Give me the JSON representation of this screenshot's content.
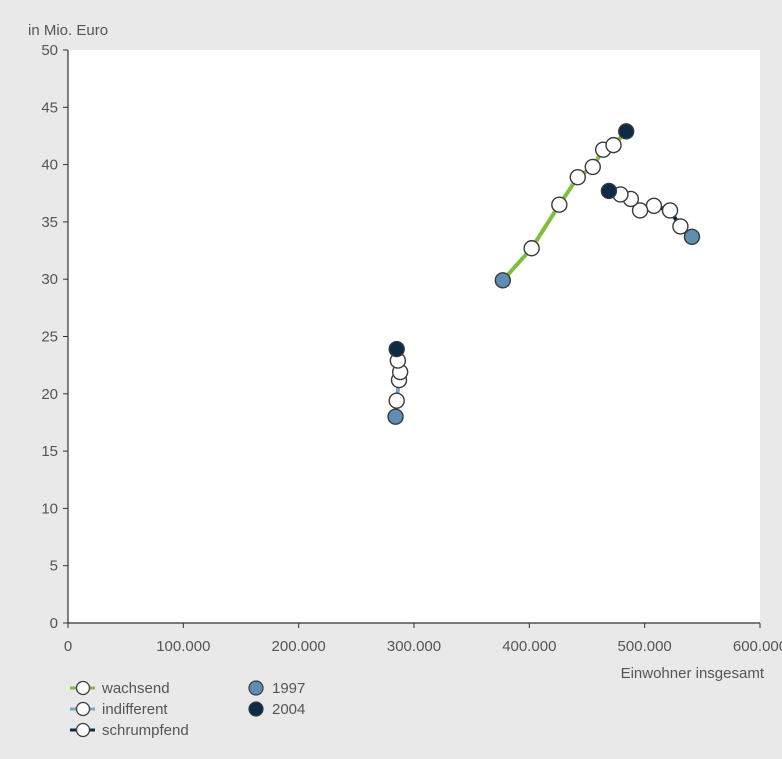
{
  "chart_data": {
    "type": "line",
    "ylabel": "in Mio. Euro",
    "xlabel": "Einwohner insgesamt",
    "xlim": [
      0,
      600000
    ],
    "ylim": [
      0,
      50
    ],
    "x_ticks": [
      0,
      100000,
      200000,
      300000,
      400000,
      500000,
      600000
    ],
    "x_tick_labels": [
      "0",
      "100.000",
      "200.000",
      "300.000",
      "400.000",
      "500.000",
      "600.000"
    ],
    "y_ticks": [
      0,
      5,
      10,
      15,
      20,
      25,
      30,
      35,
      40,
      45,
      50
    ],
    "y_tick_labels": [
      "0",
      "5",
      "10",
      "15",
      "20",
      "25",
      "30",
      "35",
      "40",
      "45",
      "50"
    ],
    "grid": false,
    "legend_position": "bottom-left",
    "series": [
      {
        "name": "wachsend",
        "line_color": "#7dbf3c",
        "points": [
          {
            "x": 377000,
            "y": 29.9,
            "year": "1997"
          },
          {
            "x": 402000,
            "y": 32.7
          },
          {
            "x": 426000,
            "y": 36.5
          },
          {
            "x": 442000,
            "y": 38.9
          },
          {
            "x": 455000,
            "y": 39.8
          },
          {
            "x": 464000,
            "y": 41.3
          },
          {
            "x": 473000,
            "y": 41.7
          },
          {
            "x": 484000,
            "y": 42.9,
            "year": "2004"
          }
        ]
      },
      {
        "name": "indifferent",
        "line_color": "#7ba7c7",
        "points": [
          {
            "x": 284000,
            "y": 18.0,
            "year": "1997"
          },
          {
            "x": 285000,
            "y": 19.4
          },
          {
            "x": 287000,
            "y": 21.2
          },
          {
            "x": 288000,
            "y": 21.9
          },
          {
            "x": 286000,
            "y": 22.9
          },
          {
            "x": 285000,
            "y": 23.9,
            "year": "2004"
          }
        ]
      },
      {
        "name": "schrumpfend",
        "line_color": "#0d2a46",
        "points": [
          {
            "x": 541000,
            "y": 33.7,
            "year": "1997"
          },
          {
            "x": 531000,
            "y": 34.6
          },
          {
            "x": 522000,
            "y": 36.0
          },
          {
            "x": 508000,
            "y": 36.4
          },
          {
            "x": 496000,
            "y": 36.0
          },
          {
            "x": 488000,
            "y": 37.0
          },
          {
            "x": 479000,
            "y": 37.4
          },
          {
            "x": 469000,
            "y": 37.7,
            "year": "2004"
          }
        ]
      }
    ],
    "year_markers": [
      {
        "label": "1997",
        "color": "#5e8fb3"
      },
      {
        "label": "2004",
        "color": "#0d2a46"
      }
    ]
  }
}
